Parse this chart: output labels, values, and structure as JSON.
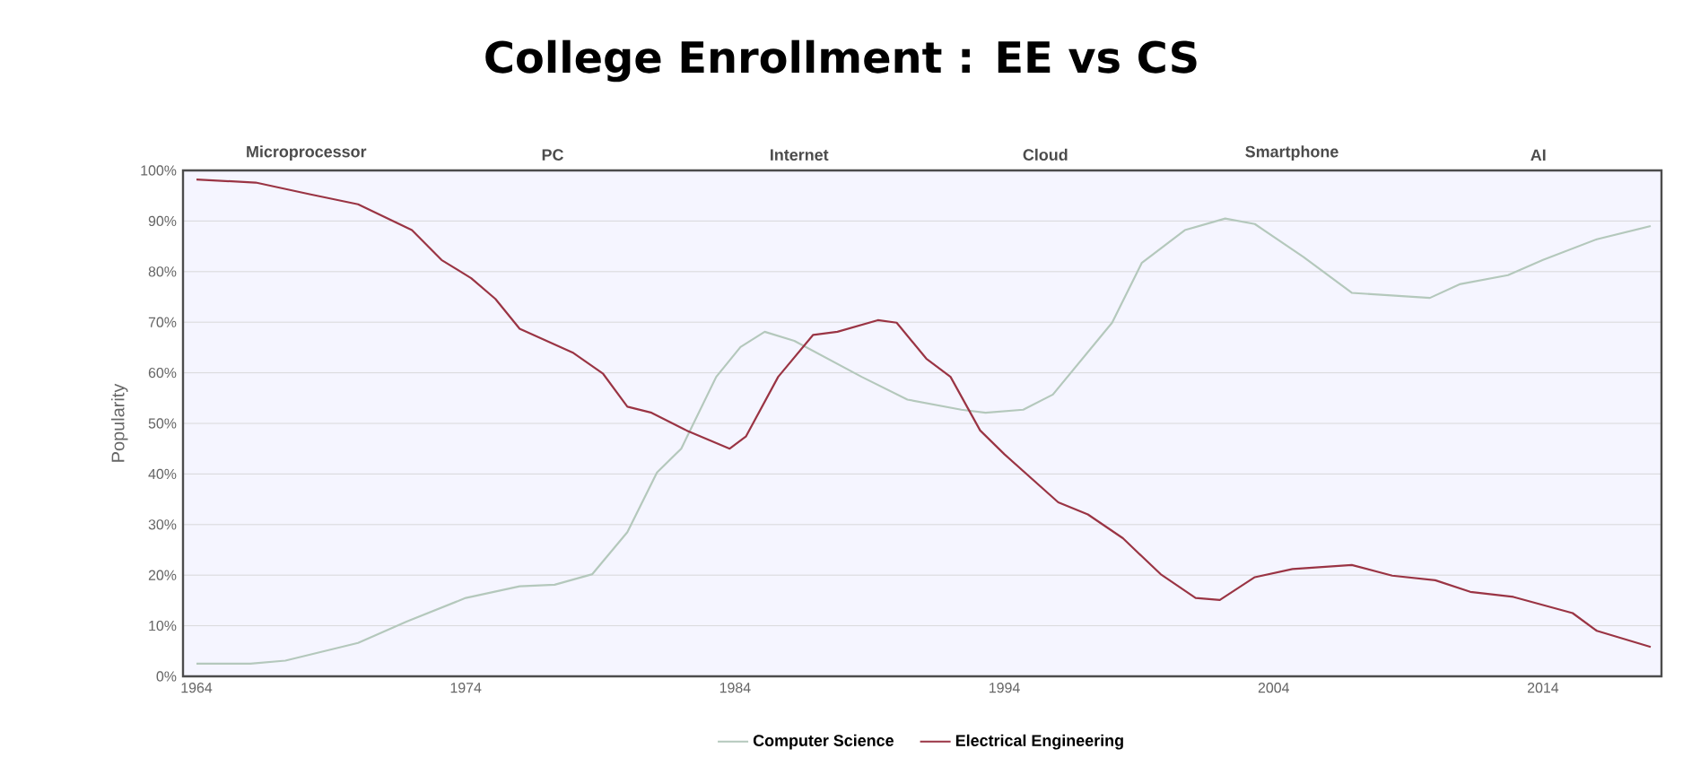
{
  "chart_data": {
    "type": "line",
    "title": "College Enrollment : EE vs CS",
    "ylabel": "Popularity",
    "annotations": [
      "Microprocessor",
      "PC",
      "Internet",
      "Cloud",
      "Smartphone",
      "AI"
    ],
    "xlim": [
      1963.5,
      2018.4
    ],
    "ylim": [
      0,
      100
    ],
    "xticks": [
      1964,
      1974,
      1984,
      1994,
      2004,
      2014
    ],
    "yticks": [
      {
        "value": 0,
        "label": "0%"
      },
      {
        "value": 10,
        "label": "10%"
      },
      {
        "value": 20,
        "label": "20%"
      },
      {
        "value": 30,
        "label": "30%"
      },
      {
        "value": 40,
        "label": "40%"
      },
      {
        "value": 50,
        "label": "50%"
      },
      {
        "value": 60,
        "label": "60%"
      },
      {
        "value": 70,
        "label": "70%"
      },
      {
        "value": 80,
        "label": "80%"
      },
      {
        "value": 90,
        "label": "90%"
      },
      {
        "value": 100,
        "label": "100%"
      }
    ],
    "grid": "y",
    "legend": "bottom",
    "marker": "none",
    "line_style": "solid",
    "series": [
      {
        "name": "Computer Science",
        "color": "#b4c8bc",
        "x": [
          1964,
          1966,
          1967.3,
          1970,
          1971.8,
          1974,
          1976,
          1977.3,
          1978.7,
          1980,
          1981.1,
          1982,
          1983.3,
          1984.2,
          1985.1,
          1986.2,
          1988.7,
          1990.4,
          1992.4,
          1993.3,
          1994.7,
          1995.8,
          1998,
          1999.1,
          2000.7,
          2002.2,
          2003.3,
          2005.1,
          2006.9,
          2009.8,
          2010.9,
          2012.7,
          2014,
          2016,
          2018
        ],
        "values": [
          2.5,
          2.5,
          3.1,
          6.6,
          10.8,
          15.5,
          17.8,
          18.1,
          20.2,
          28.5,
          40.3,
          45.0,
          59.2,
          65.1,
          68.1,
          66.3,
          59.2,
          54.7,
          52.7,
          52.1,
          52.7,
          55.7,
          69.9,
          81.7,
          88.2,
          90.5,
          89.4,
          82.9,
          75.8,
          74.8,
          77.5,
          79.3,
          82.3,
          86.4,
          89.0
        ]
      },
      {
        "name": "Electrical Engineering",
        "color": "#9a3444",
        "x": [
          1964,
          1966.2,
          1968.2,
          1970,
          1972,
          1973.1,
          1974.2,
          1975.1,
          1976,
          1978,
          1979.1,
          1980,
          1980.9,
          1982.2,
          1983.8,
          1984.4,
          1985.6,
          1986.9,
          1987.8,
          1989.3,
          1990,
          1991.1,
          1992,
          1993.1,
          1994,
          1996,
          1997.1,
          1998.4,
          1999.8,
          2001.1,
          2002,
          2003.3,
          2004.7,
          2006.9,
          2008.4,
          2010,
          2011.3,
          2012.9,
          2015.1,
          2016,
          2018
        ],
        "values": [
          98.2,
          97.6,
          95.3,
          93.3,
          88.2,
          82.3,
          78.7,
          74.6,
          68.7,
          63.9,
          59.8,
          53.3,
          52.1,
          48.6,
          45.0,
          47.4,
          59.2,
          67.5,
          68.1,
          70.4,
          69.9,
          62.8,
          59.2,
          48.6,
          43.9,
          34.4,
          32.0,
          27.3,
          20.2,
          15.5,
          15.1,
          19.6,
          21.2,
          22.0,
          19.9,
          19.0,
          16.7,
          15.7,
          12.5,
          9.0,
          5.8
        ]
      }
    ]
  }
}
